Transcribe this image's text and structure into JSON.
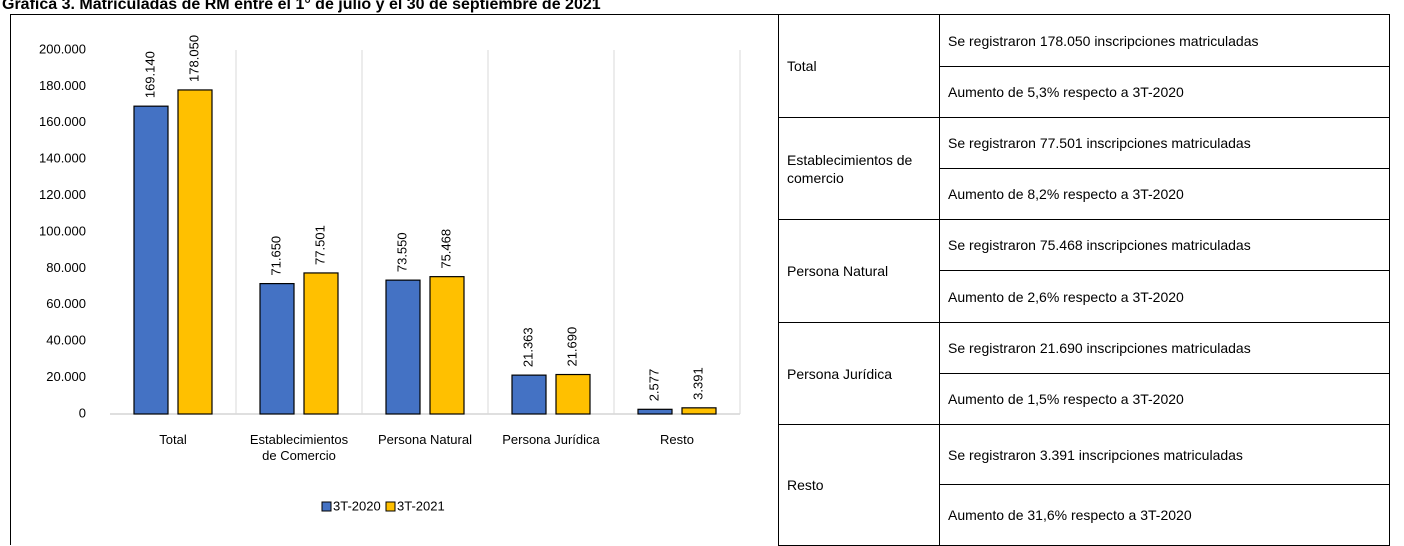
{
  "chart_data": {
    "type": "bar",
    "title": "Gráfica 3. Matriculadas de RM entre el 1° de julio y el 30 de septiembre de 2021",
    "categories": [
      "Total",
      "Establecimientos de Comercio",
      "Persona Natural",
      "Persona Jurídica",
      "Resto"
    ],
    "series": [
      {
        "name": "3T-2020",
        "color": "#4472c4",
        "values": [
          169140,
          71650,
          73550,
          21363,
          2577
        ],
        "value_labels": [
          "169.140",
          "71.650",
          "73.550",
          "21.363",
          "2.577"
        ]
      },
      {
        "name": "3T-2021",
        "color": "#ffc000",
        "values": [
          178050,
          77501,
          75468,
          21690,
          3391
        ],
        "value_labels": [
          "178.050",
          "77.501",
          "75.468",
          "21.690",
          "3.391"
        ]
      }
    ],
    "ylim": [
      0,
      200000
    ],
    "yticks": [
      0,
      {
        "value": 20000,
        "label": "20.000"
      },
      {
        "value": 40000,
        "label": "40.000"
      },
      {
        "value": 60000,
        "label": "60.000"
      },
      {
        "value": 80000,
        "label": "80.000"
      },
      {
        "value": 100000,
        "label": "100.000"
      },
      {
        "value": 120000,
        "label": "120.000"
      },
      {
        "value": 140000,
        "label": "140.000"
      },
      {
        "value": 160000,
        "label": "160.000"
      },
      {
        "value": 180000,
        "label": "180.000"
      },
      {
        "value": 200000,
        "label": "200.000"
      }
    ],
    "legend": "bottom"
  },
  "table": {
    "rows": [
      {
        "label": "Total",
        "lines": [
          "Se registraron 178.050 inscripciones matriculadas",
          "Aumento de 5,3% respecto a 3T-2020"
        ]
      },
      {
        "label": "Establecimientos de comercio",
        "lines": [
          "Se registraron 77.501 inscripciones matriculadas",
          "Aumento de 8,2% respecto a 3T-2020"
        ]
      },
      {
        "label": "Persona Natural",
        "lines": [
          "Se registraron 75.468 inscripciones matriculadas",
          "Aumento de 2,6% respecto a 3T-2020"
        ]
      },
      {
        "label": "Persona Jurídica",
        "lines": [
          "Se registraron 21.690 inscripciones matriculadas",
          "Aumento de 1,5% respecto a 3T-2020"
        ]
      },
      {
        "label": "Resto",
        "lines": [
          "Se registraron 3.391 inscripciones matriculadas",
          "Aumento de 31,6% respecto a 3T-2020"
        ]
      }
    ]
  }
}
